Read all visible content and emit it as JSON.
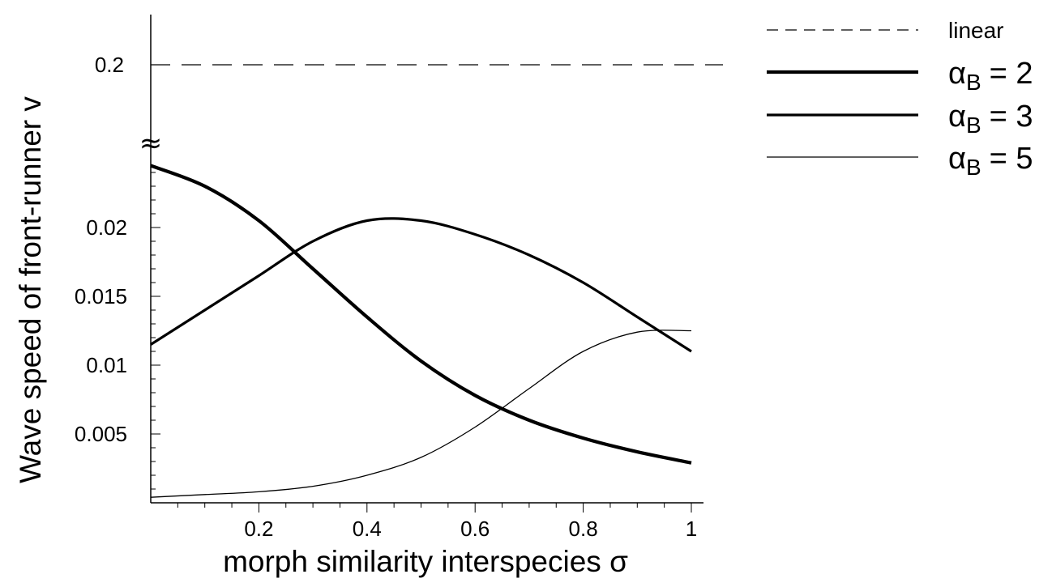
{
  "chart_data": {
    "type": "line",
    "xlabel": "morph similarity interspecies σ",
    "ylabel": "Wave speed of front-runner v",
    "xlim": [
      0,
      1
    ],
    "ylim": [
      0,
      0.025
    ],
    "x_ticks": [
      0.2,
      0.4,
      0.6,
      0.8,
      1
    ],
    "x_tick_labels": [
      "0.2",
      "0.4",
      "0.6",
      "0.8",
      "1"
    ],
    "y_ticks": [
      0.005,
      0.01,
      0.015,
      0.02
    ],
    "y_tick_labels": [
      "0.005",
      "0.01",
      "0.015",
      "0.02"
    ],
    "axis_break": {
      "symbol": "≈",
      "above_value": 0.2,
      "above_label": "0.2"
    },
    "grid": false,
    "legend_position": "top-right",
    "x": [
      0,
      0.1,
      0.2,
      0.3,
      0.4,
      0.5,
      0.6,
      0.7,
      0.8,
      0.9,
      1
    ],
    "series": [
      {
        "name": "linear",
        "style": "dashed-thin",
        "values": [
          0.2,
          0.2,
          0.2,
          0.2,
          0.2,
          0.2,
          0.2,
          0.2,
          0.2,
          0.2,
          0.2
        ],
        "drawn_above_break": true
      },
      {
        "name": "αB = 2",
        "symbol": "α",
        "subscript": "B",
        "value_text": "= 2",
        "style": "solid-thickest",
        "values": [
          0.0245,
          0.023,
          0.0205,
          0.017,
          0.0135,
          0.0103,
          0.0078,
          0.006,
          0.0047,
          0.0037,
          0.0029
        ]
      },
      {
        "name": "αB = 3",
        "symbol": "α",
        "subscript": "B",
        "value_text": "= 3",
        "style": "solid-thick",
        "values": [
          0.0115,
          0.014,
          0.0165,
          0.019,
          0.0205,
          0.0205,
          0.0195,
          0.018,
          0.016,
          0.0135,
          0.011
        ]
      },
      {
        "name": "αB = 5",
        "symbol": "α",
        "subscript": "B",
        "value_text": "= 5",
        "style": "solid-thin",
        "values": [
          0.0004,
          0.0006,
          0.0008,
          0.0012,
          0.002,
          0.0033,
          0.0055,
          0.0083,
          0.011,
          0.0124,
          0.0125
        ]
      }
    ]
  }
}
